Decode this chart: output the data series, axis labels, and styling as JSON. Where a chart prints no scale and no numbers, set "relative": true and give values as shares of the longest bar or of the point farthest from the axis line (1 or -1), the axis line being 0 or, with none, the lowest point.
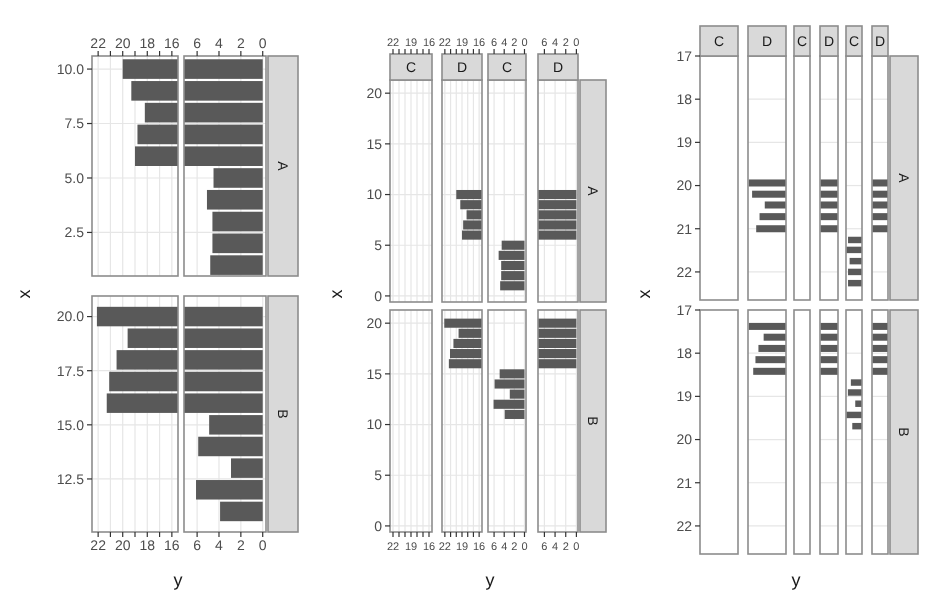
{
  "chart_data": [
    {
      "type": "bar",
      "orientation": "horizontal",
      "x": [
        6,
        7,
        8,
        9,
        10
      ],
      "values": [
        19.0,
        18.8,
        18.2,
        19.3,
        20.0
      ],
      "color": "#595959",
      "xlim": [
        22.5,
        15.5
      ],
      "xticks": [
        22,
        {
          "value": 21,
          "label": null
        },
        20,
        {
          "value": 19,
          "label": null
        },
        18,
        {
          "value": 17,
          "label": null
        },
        16
      ],
      "ylim": [
        0.5,
        10.6
      ],
      "yticks": [
        {
          "value": 2.5,
          "label": "2.5"
        },
        {
          "value": 5,
          "label": "5.0"
        },
        {
          "value": 7.5,
          "label": "7.5"
        },
        {
          "value": 10,
          "label": "10.0"
        }
      ],
      "grid": true,
      "ylabel": "x"
    },
    {
      "type": "bar",
      "orientation": "horizontal",
      "x": [
        1,
        2,
        3,
        4,
        5,
        6,
        7,
        8,
        9,
        10
      ],
      "values": [
        4.8,
        4.6,
        4.6,
        5.1,
        4.5,
        7.2,
        7.2,
        7.2,
        7.2,
        7.2
      ],
      "color": "#595959",
      "xlim": [
        7.2,
        -0.3
      ],
      "xticks": [
        6,
        4,
        2,
        0
      ],
      "ylim": [
        0.5,
        10.6
      ],
      "yticks": [
        2.5,
        5,
        7.5,
        10
      ],
      "grid": true,
      "tick_labels": "x",
      "annotations": [
        "A"
      ]
    },
    {
      "type": "bar",
      "orientation": "horizontal",
      "x": [
        16,
        17,
        18,
        19,
        20
      ],
      "values": [
        21.3,
        21.1,
        20.5,
        19.6,
        22.1
      ],
      "color": "#595959",
      "xlim": [
        22.5,
        15.5
      ],
      "xticks": [
        22,
        {
          "value": 21,
          "label": null
        },
        20,
        {
          "value": 19,
          "label": null
        },
        18,
        {
          "value": 17,
          "label": null
        },
        16
      ],
      "ylim": [
        10.05,
        20.95
      ],
      "yticks": [
        {
          "value": 12.5,
          "label": "12.5"
        },
        {
          "value": 15,
          "label": "15.0"
        },
        {
          "value": 17.5,
          "label": "17.5"
        },
        {
          "value": 20,
          "label": "20.0"
        }
      ],
      "grid": true,
      "xlabel": "y"
    },
    {
      "type": "bar",
      "orientation": "horizontal",
      "x": [
        11,
        12,
        13,
        14,
        15,
        16,
        17,
        18,
        19,
        20
      ],
      "values": [
        3.9,
        6.1,
        2.9,
        5.9,
        4.9,
        7.2,
        7.2,
        7.2,
        7.2,
        7.2
      ],
      "color": "#595959",
      "xlim": [
        7.2,
        -0.3
      ],
      "xticks": [
        6,
        4,
        2,
        0
      ],
      "ylim": [
        10.05,
        20.95
      ],
      "yticks": [
        12.5,
        15,
        17.5,
        20
      ],
      "grid": true,
      "tick_labels": "x",
      "annotations": [
        "B"
      ]
    },
    {
      "type": "bar",
      "orientation": "horizontal",
      "title": "C",
      "xlim": [
        22.5,
        15.5
      ],
      "xticks": [
        22,
        {
          "value": 21,
          "label": null
        },
        {
          "value": 20,
          "label": null
        },
        19,
        {
          "value": 18,
          "label": null
        },
        {
          "value": 17,
          "label": null
        },
        16
      ],
      "ylim": [
        -0.6,
        21.3
      ],
      "yticks": [
        0,
        5,
        10,
        15,
        20
      ],
      "grid": true,
      "tick_labels": "x"
    },
    {
      "type": "bar",
      "orientation": "horizontal",
      "title": "D",
      "x": [
        6,
        7,
        8,
        9,
        10
      ],
      "values": [
        19.0,
        18.8,
        18.2,
        19.3,
        20.0
      ],
      "color": "#595959",
      "xlim": [
        22.5,
        15.5
      ],
      "xticks": [
        22,
        {
          "value": 21,
          "label": null
        },
        {
          "value": 20,
          "label": null
        },
        19,
        {
          "value": 18,
          "label": null
        },
        {
          "value": 17,
          "label": null
        },
        16
      ],
      "ylim": [
        -0.6,
        21.3
      ],
      "yticks": [
        0,
        5,
        10,
        15,
        20
      ],
      "grid": true,
      "ylabel": "x"
    },
    {
      "type": "bar",
      "orientation": "horizontal",
      "title": "C",
      "x": [
        1,
        2,
        3,
        4,
        5
      ],
      "values": [
        4.8,
        4.6,
        4.6,
        5.1,
        4.5
      ],
      "color": "#595959",
      "xlim": [
        7.2,
        -0.3
      ],
      "xticks": [
        6,
        4,
        2,
        0
      ],
      "ylim": [
        -0.6,
        21.3
      ],
      "yticks": [
        0,
        5,
        10,
        15,
        20
      ],
      "grid": true,
      "tick_labels": "x"
    },
    {
      "type": "bar",
      "orientation": "horizontal",
      "title": "D",
      "x": [
        6,
        7,
        8,
        9,
        10
      ],
      "values": [
        7.2,
        7.2,
        7.2,
        7.2,
        7.2
      ],
      "color": "#595959",
      "xlim": [
        7.2,
        -0.3
      ],
      "xticks": [
        6,
        4,
        2,
        0
      ],
      "ylim": [
        -0.6,
        21.3
      ],
      "yticks": [
        0,
        5,
        10,
        15,
        20
      ],
      "grid": true,
      "tick_labels": "x",
      "annotations": [
        "A"
      ]
    },
    {
      "type": "bar",
      "orientation": "horizontal",
      "xlim": [
        22.5,
        15.5
      ],
      "xticks": [
        22,
        {
          "value": 21,
          "label": null
        },
        {
          "value": 20,
          "label": null
        },
        19,
        {
          "value": 18,
          "label": null
        },
        {
          "value": 17,
          "label": null
        },
        16
      ],
      "ylim": [
        -0.6,
        21.3
      ],
      "yticks": [
        0,
        5,
        10,
        15,
        20
      ],
      "grid": true,
      "tick_labels": "x"
    },
    {
      "type": "bar",
      "orientation": "horizontal",
      "x": [
        16,
        17,
        18,
        19,
        20
      ],
      "values": [
        21.3,
        21.1,
        20.5,
        19.6,
        22.1
      ],
      "color": "#595959",
      "xlim": [
        22.5,
        15.5
      ],
      "xticks": [
        22,
        {
          "value": 21,
          "label": null
        },
        {
          "value": 20,
          "label": null
        },
        19,
        {
          "value": 18,
          "label": null
        },
        {
          "value": 17,
          "label": null
        },
        16
      ],
      "ylim": [
        -0.6,
        21.3
      ],
      "yticks": [
        0,
        5,
        10,
        15,
        20
      ],
      "grid": true,
      "xlabel": "y"
    },
    {
      "type": "bar",
      "orientation": "horizontal",
      "x": [
        11,
        12,
        13,
        14,
        15
      ],
      "values": [
        3.9,
        6.1,
        2.9,
        5.9,
        4.9
      ],
      "color": "#595959",
      "xlim": [
        7.2,
        -0.3
      ],
      "xticks": [
        6,
        4,
        2,
        0
      ],
      "ylim": [
        -0.6,
        21.3
      ],
      "yticks": [
        0,
        5,
        10,
        15,
        20
      ],
      "grid": true,
      "tick_labels": "x"
    },
    {
      "type": "bar",
      "orientation": "horizontal",
      "x": [
        16,
        17,
        18,
        19,
        20
      ],
      "values": [
        7.2,
        7.2,
        7.2,
        7.2,
        7.2
      ],
      "color": "#595959",
      "xlim": [
        7.2,
        -0.3
      ],
      "xticks": [
        6,
        4,
        2,
        0
      ],
      "ylim": [
        -0.6,
        21.3
      ],
      "yticks": [
        0,
        5,
        10,
        15,
        20
      ],
      "grid": true,
      "tick_labels": "x",
      "annotations": [
        "B"
      ]
    },
    {
      "type": "other",
      "title": "C"
    },
    {
      "type": "bar",
      "orientation": "horizontal",
      "relative": true,
      "title": "D",
      "x": [
        19.94,
        20.2,
        20.45,
        20.72,
        21.0
      ],
      "values": [
        1,
        0.91,
        0.57,
        0.71,
        0.8
      ],
      "color": "#595959",
      "ylim": [
        22.65,
        17
      ],
      "yticks": [
        17,
        18,
        19,
        20,
        21,
        22
      ],
      "grid": true,
      "tick_labels": "y",
      "ylabel": "x"
    },
    {
      "type": "other",
      "title": "C"
    },
    {
      "type": "bar",
      "orientation": "horizontal",
      "relative": true,
      "title": "D",
      "x": [
        19.94,
        20.2,
        20.45,
        20.72,
        21.0
      ],
      "values": [
        1,
        1,
        1,
        1,
        1
      ],
      "color": "#595959",
      "ylim": [
        22.65,
        17
      ],
      "yticks": [
        17,
        18,
        19,
        20,
        21,
        22
      ],
      "grid": true,
      "tick_labels": false
    },
    {
      "type": "bar",
      "orientation": "horizontal",
      "relative": true,
      "title": "C",
      "x": [
        21.26,
        21.49,
        21.75,
        22.0,
        22.26
      ],
      "values": [
        0.89,
        1,
        0.79,
        0.89,
        0.89
      ],
      "color": "#595959",
      "ylim": [
        22.65,
        17
      ],
      "yticks": [
        17,
        18,
        19,
        20,
        21,
        22
      ],
      "grid": true,
      "tick_labels": false
    },
    {
      "type": "bar",
      "orientation": "horizontal",
      "relative": true,
      "title": "D",
      "x": [
        19.94,
        20.2,
        20.45,
        20.72,
        21.0
      ],
      "values": [
        1,
        1,
        1,
        1,
        1
      ],
      "color": "#595959",
      "ylim": [
        22.65,
        17
      ],
      "yticks": [
        17,
        18,
        19,
        20,
        21,
        22
      ],
      "grid": true,
      "tick_labels": false,
      "annotations": [
        "A"
      ]
    },
    {
      "type": "other"
    },
    {
      "type": "bar",
      "orientation": "horizontal",
      "relative": true,
      "x": [
        17.38,
        17.63,
        17.89,
        18.15,
        18.42
      ],
      "values": [
        1,
        0.6,
        0.74,
        0.82,
        0.88
      ],
      "color": "#595959",
      "ylim": [
        22.65,
        17
      ],
      "yticks": [
        17,
        18,
        19,
        20,
        21,
        22
      ],
      "grid": true,
      "tick_labels": "y",
      "xlabel": "y"
    },
    {
      "type": "other"
    },
    {
      "type": "bar",
      "orientation": "horizontal",
      "relative": true,
      "x": [
        17.38,
        17.63,
        17.89,
        18.15,
        18.42
      ],
      "values": [
        1,
        1,
        1,
        1,
        1
      ],
      "color": "#595959",
      "ylim": [
        22.65,
        17
      ],
      "yticks": [
        17,
        18,
        19,
        20,
        21,
        22
      ],
      "grid": true,
      "tick_labels": false
    },
    {
      "type": "bar",
      "orientation": "horizontal",
      "relative": true,
      "x": [
        18.68,
        18.91,
        19.17,
        19.43,
        19.69
      ],
      "values": [
        0.71,
        0.9,
        0.43,
        1,
        0.62
      ],
      "color": "#595959",
      "ylim": [
        22.65,
        17
      ],
      "yticks": [
        17,
        18,
        19,
        20,
        21,
        22
      ],
      "grid": true,
      "tick_labels": false
    },
    {
      "type": "bar",
      "orientation": "horizontal",
      "relative": true,
      "x": [
        17.38,
        17.63,
        17.89,
        18.15,
        18.42
      ],
      "values": [
        1,
        1,
        1,
        1,
        1
      ],
      "color": "#595959",
      "ylim": [
        22.65,
        17
      ],
      "yticks": [
        17,
        18,
        19,
        20,
        21,
        22
      ],
      "grid": true,
      "tick_labels": false,
      "annotations": [
        "B"
      ]
    }
  ]
}
